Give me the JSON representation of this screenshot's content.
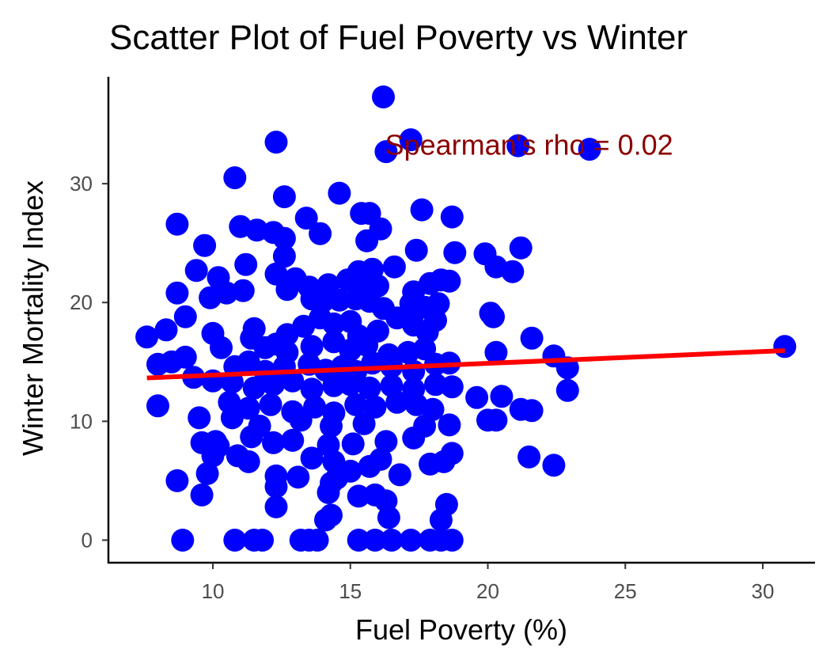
{
  "chart_data": {
    "type": "scatter",
    "title": "Scatter Plot of Fuel Poverty vs Winter",
    "xlabel": "Fuel Poverty (%)",
    "ylabel": "Winter Mortality Index",
    "xlim": [
      6.2,
      31.9
    ],
    "ylim": [
      -1.9,
      39.0
    ],
    "xticks": [
      10,
      15,
      20,
      25,
      30
    ],
    "yticks": [
      0,
      10,
      20,
      30
    ],
    "grid": false,
    "annotation": {
      "text": "Spearman's rho = 0.02",
      "x": 21.5,
      "y": 33.3,
      "color": "#8B0000"
    },
    "trend_line": {
      "x": [
        7.6,
        30.8
      ],
      "y": [
        13.65,
        15.95
      ],
      "color": "#FF0000"
    },
    "point_color": "#0000FF",
    "points": [
      [
        16.2,
        37.3
      ],
      [
        17.2,
        33.7
      ],
      [
        12.3,
        33.5
      ],
      [
        16.3,
        32.7
      ],
      [
        21.1,
        33.2
      ],
      [
        23.7,
        32.9
      ],
      [
        10.8,
        30.5
      ],
      [
        12.6,
        28.9
      ],
      [
        14.6,
        29.2
      ],
      [
        15.4,
        27.5
      ],
      [
        15.7,
        27.5
      ],
      [
        17.6,
        27.8
      ],
      [
        18.7,
        27.2
      ],
      [
        8.7,
        26.6
      ],
      [
        11.0,
        26.4
      ],
      [
        11.6,
        26.1
      ],
      [
        12.2,
        25.9
      ],
      [
        12.6,
        25.4
      ],
      [
        13.4,
        27.1
      ],
      [
        13.9,
        25.8
      ],
      [
        16.1,
        26.2
      ],
      [
        15.6,
        25.2
      ],
      [
        17.4,
        24.4
      ],
      [
        18.8,
        24.2
      ],
      [
        19.9,
        24.1
      ],
      [
        21.2,
        24.6
      ],
      [
        9.7,
        24.8
      ],
      [
        10.2,
        22.1
      ],
      [
        9.4,
        22.7
      ],
      [
        11.2,
        23.2
      ],
      [
        12.3,
        22.4
      ],
      [
        12.6,
        23.9
      ],
      [
        15.3,
        22.6
      ],
      [
        15.8,
        22.8
      ],
      [
        16.6,
        23.0
      ],
      [
        20.3,
        23.0
      ],
      [
        20.9,
        22.6
      ],
      [
        8.7,
        20.8
      ],
      [
        9.9,
        20.4
      ],
      [
        10.5,
        20.8
      ],
      [
        11.1,
        21.0
      ],
      [
        12.7,
        21.1
      ],
      [
        13.0,
        22.0
      ],
      [
        13.5,
        21.3
      ],
      [
        14.2,
        21.5
      ],
      [
        14.9,
        21.9
      ],
      [
        15.5,
        21.8
      ],
      [
        16.0,
        21.4
      ],
      [
        17.3,
        20.9
      ],
      [
        17.9,
        21.6
      ],
      [
        18.3,
        21.9
      ],
      [
        18.6,
        21.8
      ],
      [
        13.6,
        20.3
      ],
      [
        14.0,
        20.1
      ],
      [
        14.6,
        20.2
      ],
      [
        15.2,
        20.3
      ],
      [
        15.7,
        20.1
      ],
      [
        16.2,
        19.5
      ],
      [
        17.2,
        19.9
      ],
      [
        17.7,
        19.6
      ],
      [
        18.2,
        19.9
      ],
      [
        20.1,
        19.1
      ],
      [
        20.2,
        18.8
      ],
      [
        9.0,
        18.8
      ],
      [
        8.3,
        17.7
      ],
      [
        7.6,
        17.1
      ],
      [
        10.0,
        17.4
      ],
      [
        11.5,
        17.8
      ],
      [
        11.4,
        17.0
      ],
      [
        12.7,
        17.3
      ],
      [
        13.3,
        18.0
      ],
      [
        13.9,
        18.7
      ],
      [
        14.4,
        18.2
      ],
      [
        15.0,
        18.4
      ],
      [
        15.3,
        17.2
      ],
      [
        16.0,
        17.6
      ],
      [
        16.7,
        18.7
      ],
      [
        17.3,
        18.1
      ],
      [
        17.8,
        17.5
      ],
      [
        18.1,
        18.5
      ],
      [
        10.3,
        16.2
      ],
      [
        11.9,
        16.2
      ],
      [
        12.3,
        16.5
      ],
      [
        12.7,
        15.8
      ],
      [
        13.6,
        16.3
      ],
      [
        14.4,
        16.7
      ],
      [
        15.0,
        16.0
      ],
      [
        15.6,
        16.4
      ],
      [
        16.4,
        15.6
      ],
      [
        17.1,
        15.8
      ],
      [
        17.7,
        16.1
      ],
      [
        20.3,
        15.8
      ],
      [
        21.6,
        17.0
      ],
      [
        8.0,
        14.8
      ],
      [
        8.5,
        15.0
      ],
      [
        9.0,
        15.4
      ],
      [
        9.3,
        13.7
      ],
      [
        10.0,
        13.4
      ],
      [
        10.8,
        14.6
      ],
      [
        11.3,
        15.0
      ],
      [
        11.9,
        14.2
      ],
      [
        12.6,
        14.6
      ],
      [
        13.5,
        14.8
      ],
      [
        14.1,
        14.3
      ],
      [
        14.7,
        14.6
      ],
      [
        15.2,
        14.2
      ],
      [
        15.8,
        14.9
      ],
      [
        16.5,
        14.6
      ],
      [
        17.3,
        14.2
      ],
      [
        18.1,
        14.8
      ],
      [
        18.6,
        14.9
      ],
      [
        22.4,
        15.5
      ],
      [
        22.9,
        14.5
      ],
      [
        10.7,
        13.3
      ],
      [
        11.5,
        12.8
      ],
      [
        12.2,
        13.1
      ],
      [
        12.9,
        13.4
      ],
      [
        13.6,
        12.7
      ],
      [
        14.4,
        13.0
      ],
      [
        15.0,
        13.1
      ],
      [
        15.7,
        12.8
      ],
      [
        16.5,
        13.0
      ],
      [
        17.3,
        12.7
      ],
      [
        18.1,
        13.1
      ],
      [
        18.7,
        12.9
      ],
      [
        19.6,
        12.0
      ],
      [
        20.5,
        12.1
      ],
      [
        22.9,
        12.6
      ],
      [
        8.0,
        11.3
      ],
      [
        10.6,
        11.6
      ],
      [
        11.3,
        11.1
      ],
      [
        12.1,
        11.4
      ],
      [
        12.9,
        10.8
      ],
      [
        13.7,
        11.2
      ],
      [
        14.4,
        10.7
      ],
      [
        15.2,
        11.4
      ],
      [
        15.9,
        11.2
      ],
      [
        16.7,
        11.6
      ],
      [
        17.4,
        11.4
      ],
      [
        18.0,
        11.0
      ],
      [
        21.2,
        11.0
      ],
      [
        21.6,
        10.9
      ],
      [
        9.5,
        10.3
      ],
      [
        10.7,
        10.3
      ],
      [
        11.7,
        9.6
      ],
      [
        13.2,
        10.1
      ],
      [
        14.3,
        9.6
      ],
      [
        15.5,
        9.8
      ],
      [
        17.7,
        9.6
      ],
      [
        18.6,
        9.7
      ],
      [
        20.0,
        10.1
      ],
      [
        20.3,
        10.1
      ],
      [
        9.6,
        8.2
      ],
      [
        10.1,
        8.3
      ],
      [
        10.2,
        7.9
      ],
      [
        11.4,
        8.7
      ],
      [
        12.2,
        8.2
      ],
      [
        12.9,
        8.4
      ],
      [
        14.2,
        8.0
      ],
      [
        15.1,
        8.1
      ],
      [
        16.3,
        8.3
      ],
      [
        17.3,
        8.6
      ],
      [
        10.0,
        7.1
      ],
      [
        10.9,
        7.1
      ],
      [
        11.3,
        6.6
      ],
      [
        13.6,
        6.9
      ],
      [
        14.4,
        6.6
      ],
      [
        15.0,
        5.8
      ],
      [
        15.7,
        6.2
      ],
      [
        16.1,
        6.8
      ],
      [
        16.8,
        5.5
      ],
      [
        17.9,
        6.4
      ],
      [
        18.4,
        6.6
      ],
      [
        18.7,
        7.3
      ],
      [
        21.5,
        7.0
      ],
      [
        22.4,
        6.3
      ],
      [
        8.7,
        5.0
      ],
      [
        9.8,
        5.6
      ],
      [
        12.3,
        5.4
      ],
      [
        12.3,
        4.5
      ],
      [
        13.1,
        5.3
      ],
      [
        14.3,
        4.8
      ],
      [
        14.5,
        5.2
      ],
      [
        15.3,
        3.7
      ],
      [
        15.9,
        3.8
      ],
      [
        16.3,
        3.3
      ],
      [
        9.6,
        3.8
      ],
      [
        12.3,
        2.8
      ],
      [
        14.2,
        4.0
      ],
      [
        14.3,
        2.1
      ],
      [
        14.1,
        1.7
      ],
      [
        16.4,
        1.9
      ],
      [
        18.3,
        1.7
      ],
      [
        18.5,
        3.0
      ],
      [
        8.9,
        0
      ],
      [
        10.8,
        0
      ],
      [
        11.5,
        0
      ],
      [
        11.8,
        0
      ],
      [
        13.2,
        0
      ],
      [
        13.5,
        0
      ],
      [
        13.8,
        0
      ],
      [
        15.3,
        0
      ],
      [
        15.9,
        0
      ],
      [
        16.5,
        0
      ],
      [
        17.2,
        0
      ],
      [
        17.9,
        0
      ],
      [
        18.3,
        0
      ],
      [
        18.7,
        0
      ],
      [
        30.8,
        16.3
      ]
    ]
  }
}
